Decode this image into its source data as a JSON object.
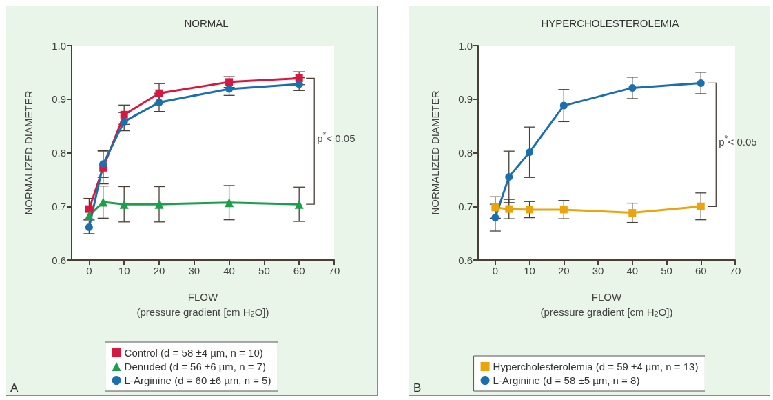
{
  "chart_data": [
    {
      "type": "line",
      "title": "NORMAL",
      "xlabel": "FLOW\n(pressure gradient [cm H$_{2}$O])",
      "ylabel": "NORMALIZED DIAMETER",
      "xlim": [
        -5,
        70
      ],
      "xticks": [
        0,
        10,
        20,
        30,
        40,
        50,
        60,
        70
      ],
      "ylim": [
        0.6,
        1.0
      ],
      "yticks": [
        0.6,
        0.7,
        0.8,
        0.9,
        {
          "value": 1.0,
          "label": "1.0"
        }
      ],
      "grid": false,
      "legend": "bottom",
      "line_style": "solid",
      "annotations": [
        "p$^{*}$< 0.05",
        "A"
      ],
      "series": [
        {
          "name": "Control (d = 58 ±4 µm, n = 10)",
          "color": "#d8173f",
          "marker": "square",
          "x": [
            0,
            4,
            10,
            20,
            40,
            60
          ],
          "values": [
            0.695,
            0.772,
            0.871,
            0.911,
            0.932,
            0.939
          ],
          "errors": [
            0.02,
            0.03,
            0.018,
            0.018,
            0.01,
            0.012
          ]
        },
        {
          "name": "Denuded (d = 56 ±6 µm, n = 7)",
          "color": "#1d9e4b",
          "marker": "triangle",
          "x": [
            0,
            4,
            10,
            20,
            40,
            60
          ],
          "values": [
            0.683,
            0.708,
            0.704,
            0.704,
            0.707,
            0.704
          ],
          "errors": [
            null,
            0.03,
            0.033,
            0.033,
            0.032,
            0.032
          ]
        },
        {
          "name": "L-Arginine (d = 60 ±6 µm, n = 5)",
          "color": "#1a6fae",
          "marker": "circle",
          "x": [
            0,
            4,
            10,
            20,
            40,
            60
          ],
          "values": [
            0.661,
            0.779,
            0.858,
            0.894,
            0.919,
            0.928
          ],
          "errors": [
            0.012,
            0.025,
            0.017,
            0.017,
            0.012,
            0.012
          ]
        }
      ]
    },
    {
      "type": "line",
      "title": "HYPERCHOLESTEROLEMIA",
      "xlabel": "FLOW\n(pressure gradient [cm H$_{2}$O])",
      "ylabel": "NORMALIZED DIAMETER",
      "xlim": [
        -5,
        70
      ],
      "xticks": [
        0,
        10,
        20,
        30,
        40,
        50,
        60,
        70
      ],
      "ylim": [
        0.6,
        1.0
      ],
      "yticks": [
        0.6,
        0.7,
        0.8,
        0.9,
        {
          "value": 1.0,
          "label": "1.0"
        }
      ],
      "grid": false,
      "legend": "bottom",
      "line_style": "solid",
      "annotations": [
        "p$^{*}$< 0.05",
        "B"
      ],
      "series": [
        {
          "name": "Hypercholesterolemia (d = 59 ±4 µm, n = 13)",
          "color": "#eba40c",
          "marker": "square",
          "x": [
            0,
            4,
            10,
            20,
            40,
            60
          ],
          "values": [
            0.698,
            0.695,
            0.694,
            0.694,
            0.688,
            0.7
          ],
          "errors": [
            0.02,
            0.018,
            0.015,
            0.017,
            0.018,
            0.025
          ]
        },
        {
          "name": "L-Arginine (d = 58 ±5 µm, n = 8)",
          "color": "#1a6fae",
          "marker": "circle",
          "x": [
            0,
            4,
            10,
            20,
            40,
            60
          ],
          "values": [
            0.679,
            0.755,
            0.801,
            0.888,
            0.921,
            0.93
          ],
          "errors": [
            0.025,
            0.048,
            0.047,
            0.03,
            0.02,
            0.02
          ]
        }
      ]
    }
  ]
}
